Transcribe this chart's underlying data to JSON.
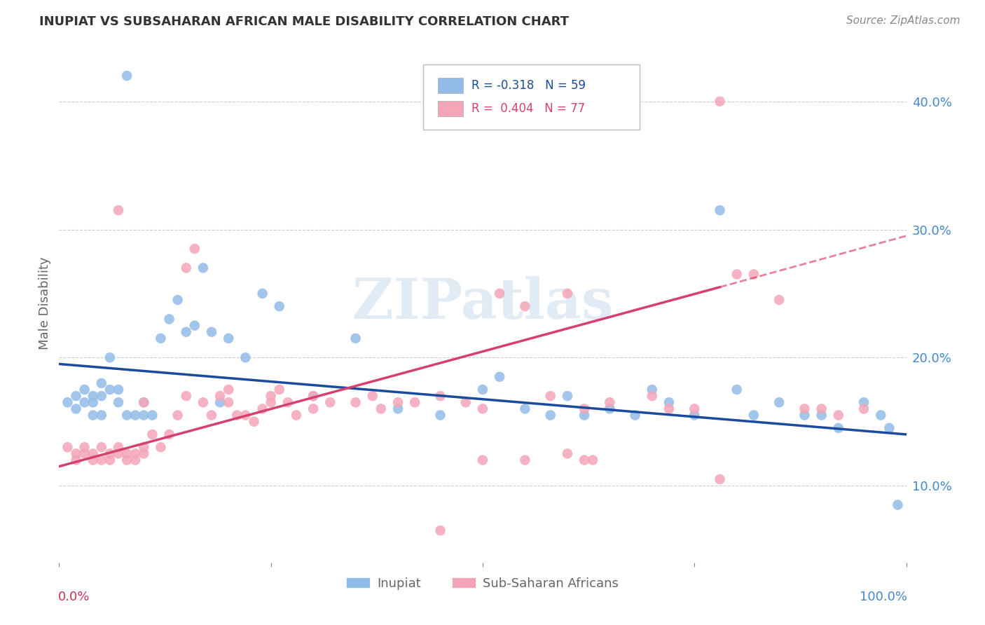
{
  "title": "INUPIAT VS SUBSAHARAN AFRICAN MALE DISABILITY CORRELATION CHART",
  "source": "Source: ZipAtlas.com",
  "ylabel": "Male Disability",
  "y_ticks": [
    0.1,
    0.2,
    0.3,
    0.4
  ],
  "y_tick_labels": [
    "10.0%",
    "20.0%",
    "30.0%",
    "40.0%"
  ],
  "xlim": [
    0.0,
    1.0
  ],
  "ylim": [
    0.04,
    0.445
  ],
  "inupiat_color": "#92bce8",
  "subsaharan_color": "#f4a5b8",
  "inupiat_line_color": "#1a4b9c",
  "subsaharan_line_color": "#d44070",
  "grid_color": "#cccccc",
  "bg_color": "#ffffff",
  "inupiat_R": -0.318,
  "inupiat_N": 59,
  "subsaharan_R": 0.404,
  "subsaharan_N": 77,
  "inupiat_x": [
    0.01,
    0.02,
    0.02,
    0.03,
    0.03,
    0.04,
    0.04,
    0.04,
    0.05,
    0.05,
    0.05,
    0.06,
    0.06,
    0.07,
    0.07,
    0.08,
    0.08,
    0.09,
    0.1,
    0.1,
    0.11,
    0.12,
    0.13,
    0.14,
    0.15,
    0.16,
    0.17,
    0.18,
    0.19,
    0.2,
    0.22,
    0.24,
    0.26,
    0.3,
    0.35,
    0.4,
    0.45,
    0.5,
    0.52,
    0.55,
    0.58,
    0.6,
    0.62,
    0.65,
    0.68,
    0.7,
    0.72,
    0.75,
    0.78,
    0.8,
    0.82,
    0.85,
    0.88,
    0.9,
    0.92,
    0.95,
    0.97,
    0.98,
    0.99
  ],
  "inupiat_y": [
    0.165,
    0.17,
    0.16,
    0.165,
    0.175,
    0.17,
    0.155,
    0.165,
    0.18,
    0.17,
    0.155,
    0.175,
    0.2,
    0.165,
    0.175,
    0.42,
    0.155,
    0.155,
    0.165,
    0.155,
    0.155,
    0.215,
    0.23,
    0.245,
    0.22,
    0.225,
    0.27,
    0.22,
    0.165,
    0.215,
    0.2,
    0.25,
    0.24,
    0.17,
    0.215,
    0.16,
    0.155,
    0.175,
    0.185,
    0.16,
    0.155,
    0.17,
    0.155,
    0.16,
    0.155,
    0.175,
    0.165,
    0.155,
    0.315,
    0.175,
    0.155,
    0.165,
    0.155,
    0.155,
    0.145,
    0.165,
    0.155,
    0.145,
    0.085
  ],
  "subsaharan_x": [
    0.01,
    0.02,
    0.02,
    0.03,
    0.03,
    0.04,
    0.04,
    0.05,
    0.05,
    0.06,
    0.06,
    0.07,
    0.07,
    0.08,
    0.08,
    0.09,
    0.09,
    0.1,
    0.1,
    0.11,
    0.12,
    0.13,
    0.14,
    0.15,
    0.16,
    0.17,
    0.18,
    0.19,
    0.2,
    0.21,
    0.22,
    0.23,
    0.24,
    0.25,
    0.26,
    0.27,
    0.28,
    0.3,
    0.32,
    0.35,
    0.37,
    0.38,
    0.4,
    0.42,
    0.45,
    0.48,
    0.5,
    0.52,
    0.55,
    0.58,
    0.6,
    0.62,
    0.65,
    0.7,
    0.72,
    0.75,
    0.78,
    0.8,
    0.82,
    0.85,
    0.88,
    0.9,
    0.92,
    0.95,
    0.62,
    0.63,
    0.1,
    0.15,
    0.2,
    0.25,
    0.3,
    0.5,
    0.55,
    0.6,
    0.45,
    0.07,
    0.78
  ],
  "subsaharan_y": [
    0.13,
    0.125,
    0.12,
    0.125,
    0.13,
    0.125,
    0.12,
    0.13,
    0.12,
    0.125,
    0.12,
    0.125,
    0.13,
    0.125,
    0.12,
    0.125,
    0.12,
    0.13,
    0.125,
    0.14,
    0.13,
    0.14,
    0.155,
    0.27,
    0.285,
    0.165,
    0.155,
    0.17,
    0.175,
    0.155,
    0.155,
    0.15,
    0.16,
    0.165,
    0.175,
    0.165,
    0.155,
    0.17,
    0.165,
    0.165,
    0.17,
    0.16,
    0.165,
    0.165,
    0.17,
    0.165,
    0.16,
    0.25,
    0.24,
    0.17,
    0.25,
    0.16,
    0.165,
    0.17,
    0.16,
    0.16,
    0.4,
    0.265,
    0.265,
    0.245,
    0.16,
    0.16,
    0.155,
    0.16,
    0.12,
    0.12,
    0.165,
    0.17,
    0.165,
    0.17,
    0.16,
    0.12,
    0.12,
    0.125,
    0.065,
    0.315,
    0.105
  ],
  "title_fontsize": 13,
  "source_fontsize": 11,
  "tick_fontsize": 13,
  "ylabel_fontsize": 13
}
